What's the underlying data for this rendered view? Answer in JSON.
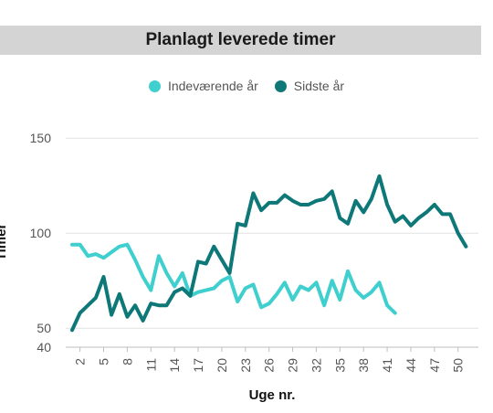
{
  "chart_data": {
    "type": "line",
    "title": "Planlagt leverede timer",
    "xlabel": "Uge nr.",
    "ylabel": "Timer",
    "x": [
      1,
      2,
      3,
      4,
      5,
      6,
      7,
      8,
      9,
      10,
      11,
      12,
      13,
      14,
      15,
      16,
      17,
      18,
      19,
      20,
      21,
      22,
      23,
      24,
      25,
      26,
      27,
      28,
      29,
      30,
      31,
      32,
      33,
      34,
      35,
      36,
      37,
      38,
      39,
      40,
      41,
      42,
      43,
      44,
      45,
      46,
      47,
      48,
      49,
      50,
      51,
      52
    ],
    "x_ticks": [
      "2",
      "5",
      "8",
      "11",
      "14",
      "17",
      "20",
      "23",
      "26",
      "29",
      "32",
      "35",
      "38",
      "41",
      "44",
      "47",
      "50"
    ],
    "y_ticks": [
      "150",
      "100",
      "50",
      "40"
    ],
    "ylim": [
      40,
      160
    ],
    "grid": true,
    "legend_position": "top-center",
    "series": [
      {
        "name": "Indeværende år",
        "color": "#40cfcf",
        "values": [
          94,
          94,
          88,
          89,
          87,
          90,
          93,
          94,
          86,
          77,
          70,
          88,
          79,
          72,
          79,
          67,
          69,
          70,
          71,
          75,
          77,
          64,
          71,
          73,
          61,
          63,
          68,
          74,
          65,
          72,
          70,
          74,
          62,
          75,
          65,
          80,
          70,
          66,
          69,
          74,
          62,
          58,
          null,
          null,
          null,
          null,
          null,
          null,
          null,
          null,
          null,
          null
        ]
      },
      {
        "name": "Sidste år",
        "color": "#0e7777",
        "values": [
          49,
          58,
          62,
          66,
          77,
          57,
          68,
          56,
          62,
          54,
          63,
          62,
          62,
          69,
          71,
          67,
          85,
          84,
          93,
          86,
          79,
          105,
          104,
          121,
          112,
          116,
          116,
          120,
          117,
          115,
          115,
          117,
          118,
          122,
          108,
          105,
          117,
          111,
          118,
          130,
          115,
          106,
          109,
          104,
          108,
          111,
          115,
          110,
          110,
          100,
          93,
          null
        ]
      }
    ]
  }
}
